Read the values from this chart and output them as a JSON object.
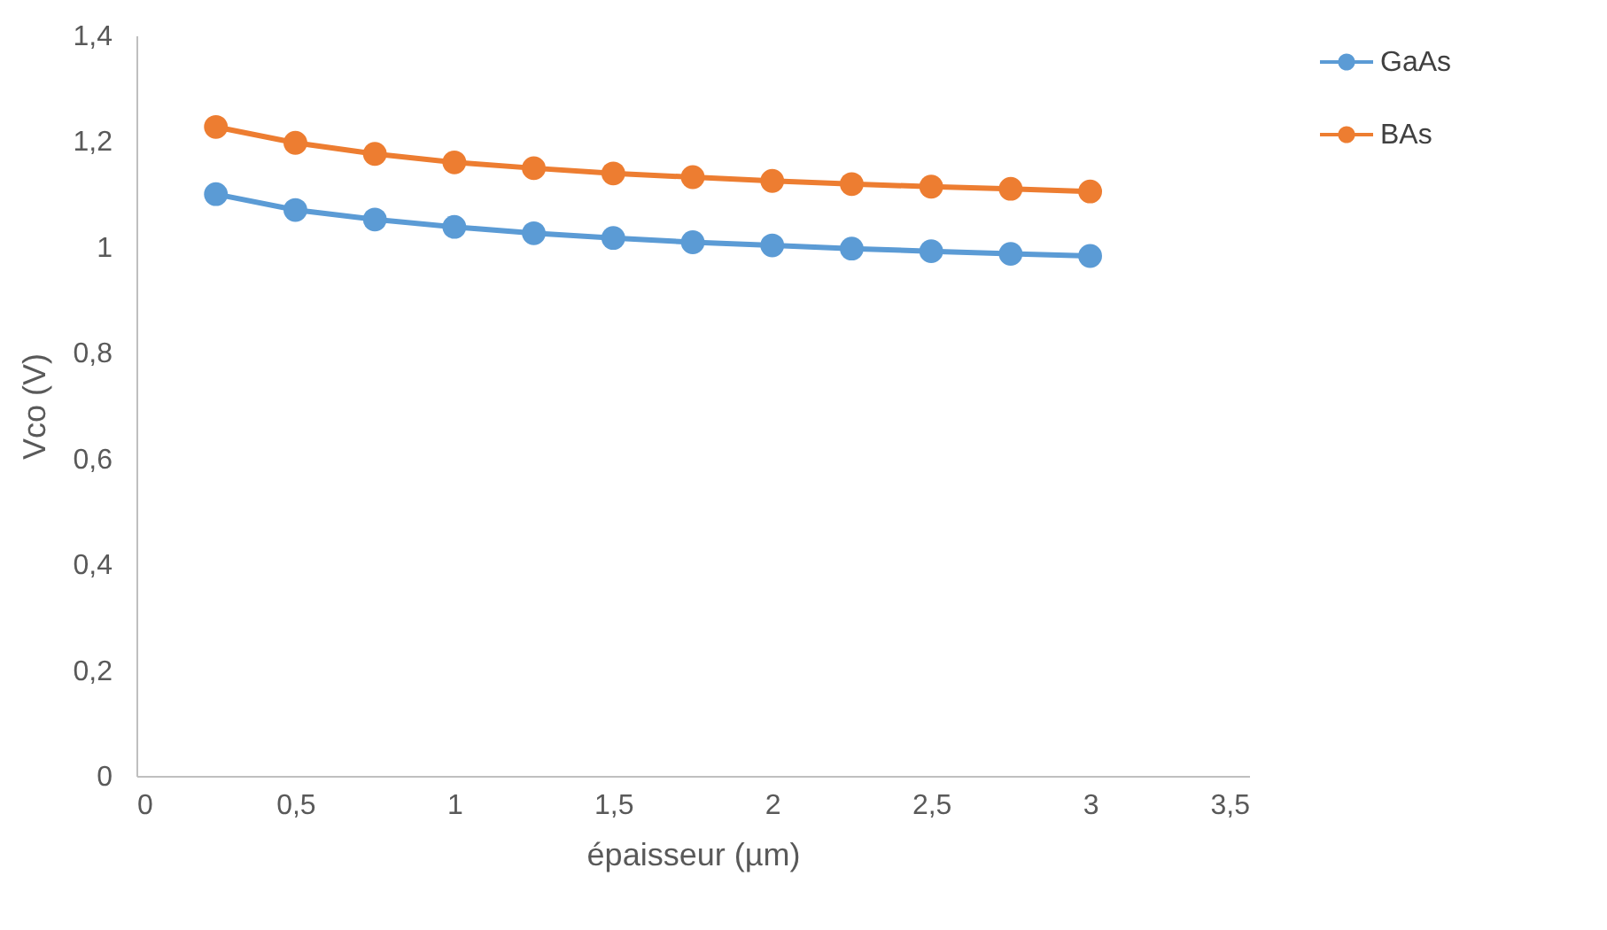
{
  "chart_data": {
    "type": "line",
    "xlabel": "épaisseur (µm)",
    "ylabel": "Vco (V)",
    "x": [
      0.25,
      0.5,
      0.75,
      1,
      1.25,
      1.5,
      1.75,
      2,
      2.25,
      2.5,
      2.75,
      3
    ],
    "series": [
      {
        "name": "GaAs",
        "color": "#5b9bd5",
        "values": [
          1.1,
          1.07,
          1.052,
          1.038,
          1.026,
          1.017,
          1.009,
          1.003,
          0.997,
          0.992,
          0.987,
          0.983
        ]
      },
      {
        "name": "BAs",
        "color": "#ed7d31",
        "values": [
          1.227,
          1.197,
          1.176,
          1.16,
          1.149,
          1.139,
          1.132,
          1.125,
          1.119,
          1.114,
          1.11,
          1.105
        ]
      }
    ],
    "xlim": [
      0,
      3.5
    ],
    "xticks": [
      {
        "value": 0,
        "label": "0"
      },
      {
        "value": 0.5,
        "label": "0,5"
      },
      {
        "value": 1,
        "label": "1"
      },
      {
        "value": 1.5,
        "label": "1,5"
      },
      {
        "value": 2,
        "label": "2"
      },
      {
        "value": 2.5,
        "label": "2,5"
      },
      {
        "value": 3,
        "label": "3"
      },
      {
        "value": 3.5,
        "label": "3,5"
      }
    ],
    "ylim": [
      0,
      1.4
    ],
    "yticks": [
      {
        "value": 0,
        "label": "0"
      },
      {
        "value": 0.2,
        "label": "0,2"
      },
      {
        "value": 0.4,
        "label": "0,4"
      },
      {
        "value": 0.6,
        "label": "0,6"
      },
      {
        "value": 0.8,
        "label": "0,8"
      },
      {
        "value": 1,
        "label": "1"
      },
      {
        "value": 1.2,
        "label": "1,2"
      },
      {
        "value": 1.4,
        "label": "1,4"
      }
    ],
    "grid": false,
    "legend": "top right",
    "marker": "circle",
    "line_style": "solid"
  }
}
